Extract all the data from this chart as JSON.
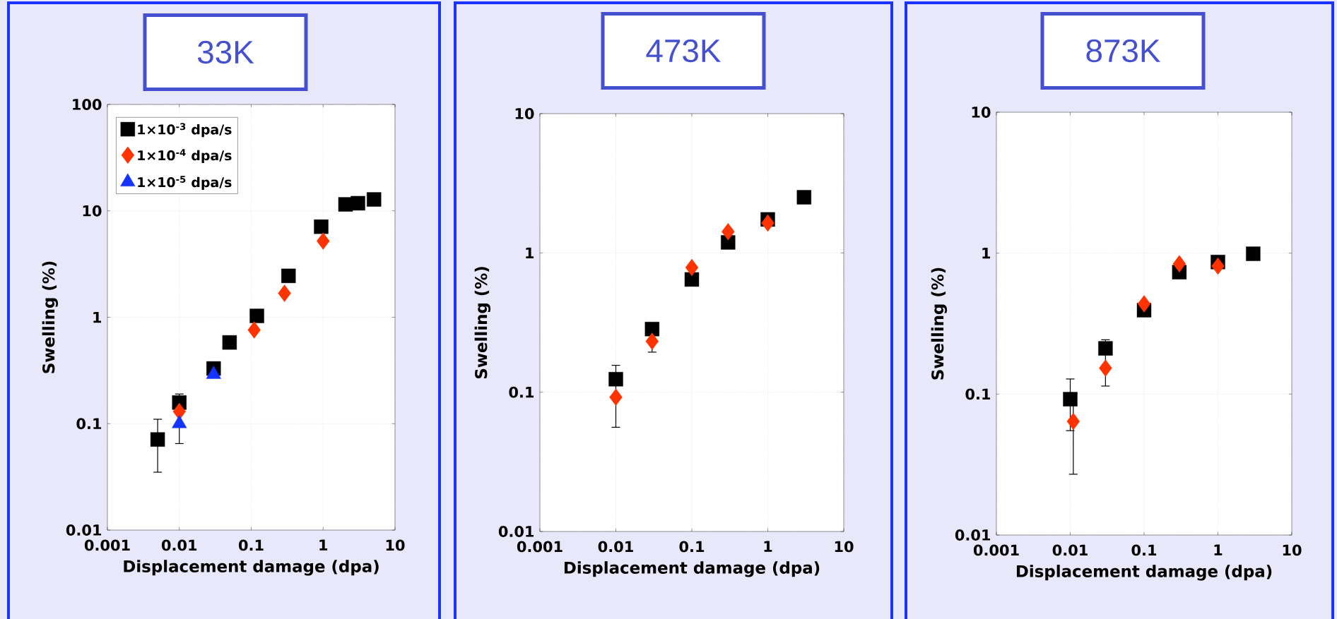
{
  "chart_data": [
    {
      "type": "scatter",
      "title": "33K",
      "xlabel": "Displacement damage (dpa)",
      "ylabel": "Swelling (%)",
      "log": "xy",
      "grid": true,
      "legend": "top left",
      "xlim": [
        0.001,
        10
      ],
      "xticks": [
        0.001,
        0.01,
        0.1,
        1,
        10
      ],
      "ylim": [
        0.01,
        100
      ],
      "yticks": [
        0.01,
        0.1,
        1,
        10,
        100
      ],
      "series": [
        {
          "name": "1×10$^{-3}$ dpa/s",
          "color": "#000000",
          "marker": "square",
          "x": [
            0.005,
            0.01,
            0.03,
            0.05,
            0.12,
            0.33,
            0.94,
            2.05,
            3.05,
            5.1
          ],
          "values": [
            0.071,
            0.158,
            0.33,
            0.58,
            1.03,
            2.45,
            7.1,
            11.5,
            11.8,
            12.8
          ],
          "errors": [
            [
              0.035,
              0.11
            ],
            [
              0.065,
              0.19
            ],
            null,
            null,
            null,
            null,
            null,
            null,
            null,
            null
          ]
        },
        {
          "name": "1×10$^{-4}$ dpa/s",
          "color": "#ff3300",
          "marker": "diamond",
          "x": [
            0.01,
            0.11,
            0.29,
            1
          ],
          "values": [
            0.13,
            0.76,
            1.68,
            5.2
          ]
        },
        {
          "name": "1×10$^{-5}$ dpa/s",
          "color": "#1433ff",
          "marker": "triangle",
          "x": [
            0.01,
            0.03
          ],
          "values": [
            0.1,
            0.29
          ]
        }
      ]
    },
    {
      "type": "scatter",
      "title": "473K",
      "xlabel": "Displacement damage (dpa)",
      "ylabel": "Swelling (%)",
      "log": "xy",
      "grid": true,
      "xlim": [
        0.001,
        10
      ],
      "xticks": [
        0.001,
        0.01,
        0.1,
        1,
        10
      ],
      "ylim": [
        0.01,
        10
      ],
      "yticks": [
        0.01,
        0.1,
        1,
        10
      ],
      "series": [
        {
          "color": "#000000",
          "marker": "square",
          "x": [
            0.01,
            0.03,
            0.1,
            0.3,
            1,
            3
          ],
          "values": [
            0.124,
            0.284,
            0.645,
            1.19,
            1.74,
            2.51
          ],
          "errors": [
            [
              0.056,
              0.156
            ],
            null,
            null,
            null,
            null,
            null
          ]
        },
        {
          "color": "#ff3300",
          "marker": "diamond",
          "x": [
            0.01,
            0.03,
            0.1,
            0.3,
            1
          ],
          "values": [
            0.092,
            0.232,
            0.785,
            1.42,
            1.64
          ],
          "errors": [
            null,
            0.038,
            null,
            null,
            null
          ]
        }
      ]
    },
    {
      "type": "scatter",
      "title": "873K",
      "xlabel": "Displacement damage (dpa)",
      "ylabel": "Swelling (%)",
      "log": "xy",
      "grid": true,
      "xlim": [
        0.001,
        10
      ],
      "xticks": [
        0.001,
        0.01,
        0.1,
        1,
        10
      ],
      "ylim": [
        0.01,
        10
      ],
      "yticks": [
        0.01,
        0.1,
        1,
        10
      ],
      "series": [
        {
          "color": "#000000",
          "marker": "square",
          "x": [
            0.01,
            0.03,
            0.1,
            0.3,
            1,
            3
          ],
          "values": [
            0.092,
            0.211,
            0.394,
            0.733,
            0.865,
            0.99
          ],
          "errors": [
            [
              0.055,
              0.128
            ],
            null,
            null,
            null,
            null,
            null
          ]
        },
        {
          "color": "#ff3300",
          "marker": "diamond",
          "x": [
            0.011,
            0.03,
            0.1,
            0.3,
            1
          ],
          "values": [
            0.064,
            0.153,
            0.437,
            0.84,
            0.81
          ],
          "errors": [
            0.037,
            [
              0.114,
              0.243
            ],
            null,
            null,
            null
          ]
        }
      ]
    }
  ]
}
